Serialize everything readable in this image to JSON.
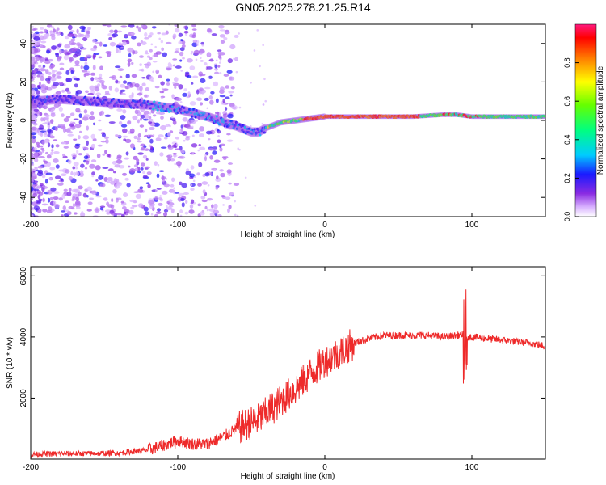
{
  "title": "GN05.2025.278.21.25.R14",
  "colors": {
    "snr_line": "#ee2a2a",
    "axis": "#000000",
    "background": "#ffffff"
  },
  "chart_data": [
    {
      "type": "heatmap",
      "name": "spectrogram",
      "title": "",
      "xlabel": "Height of straight line (km)",
      "ylabel": "Frequency (Hz)",
      "xlim": [
        -200,
        150
      ],
      "ylim": [
        -50,
        50
      ],
      "x_ticks": [
        -200,
        -100,
        0,
        100
      ],
      "y_ticks": [
        -40,
        -20,
        0,
        20,
        40
      ],
      "ridge": {
        "x": [
          -200,
          -180,
          -160,
          -140,
          -120,
          -100,
          -80,
          -60,
          -50,
          -45,
          -40,
          -30,
          -20,
          -10,
          0,
          20,
          40,
          60,
          80,
          90,
          100,
          120,
          150
        ],
        "frequency": [
          10,
          11,
          10,
          9,
          8,
          6,
          2,
          -3,
          -6,
          -6,
          -4,
          -1,
          0,
          1,
          2,
          2,
          2,
          2,
          3,
          3,
          2,
          2,
          2
        ]
      },
      "colorbar": {
        "label": "Normalized spectral amplitude",
        "range": [
          0,
          1
        ],
        "ticks": [
          0.0,
          0.2,
          0.4,
          0.6,
          0.8
        ],
        "tick_labels": [
          "0.0",
          "0.2",
          "0.4",
          "0.6",
          "0.8"
        ]
      }
    },
    {
      "type": "line",
      "name": "snr",
      "title": "",
      "xlabel": "Height of straight line (km)",
      "ylabel": "SNR (10 * v/v)",
      "xlim": [
        -200,
        150
      ],
      "ylim": [
        0,
        6300
      ],
      "x_ticks": [
        -200,
        -100,
        0,
        100
      ],
      "y_ticks": [
        2000,
        4000,
        6000
      ],
      "series": [
        {
          "name": "SNR",
          "color": "#ee2a2a",
          "x": [
            -200,
            -180,
            -160,
            -140,
            -120,
            -110,
            -100,
            -90,
            -80,
            -70,
            -60,
            -50,
            -45,
            -40,
            -30,
            -20,
            -10,
            0,
            10,
            20,
            30,
            40,
            50,
            60,
            70,
            80,
            90,
            95,
            97,
            100,
            110,
            120,
            130,
            140,
            150
          ],
          "values": [
            150,
            180,
            180,
            200,
            300,
            450,
            600,
            500,
            500,
            700,
            1000,
            1200,
            1300,
            1500,
            1900,
            2300,
            2800,
            3200,
            3500,
            3800,
            3950,
            4050,
            4050,
            4050,
            4050,
            4000,
            4050,
            4100,
            4000,
            4000,
            3950,
            3900,
            3850,
            3800,
            3700
          ]
        }
      ]
    }
  ]
}
